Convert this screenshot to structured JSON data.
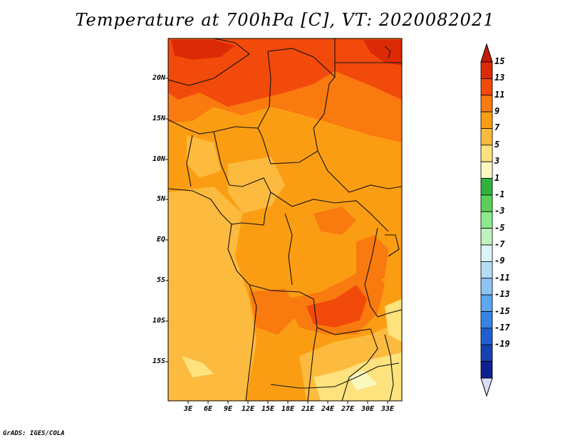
{
  "title": "Temperature at 700hPa [C], VT: 2020082021",
  "latitude_labels": [
    "20N",
    "15N",
    "10N",
    "5N",
    "EQ",
    "5S",
    "10S",
    "15S"
  ],
  "longitude_labels": [
    "3E",
    "6E",
    "9E",
    "12E",
    "15E",
    "18E",
    "21E",
    "24E",
    "27E",
    "30E",
    "33E"
  ],
  "colorbar": {
    "labels": [
      "15",
      "13",
      "11",
      "9",
      "7",
      "5",
      "3",
      "1",
      "-1",
      "-3",
      "-5",
      "-7",
      "-9",
      "-11",
      "-13",
      "-15",
      "-17",
      "-19"
    ],
    "colors": [
      "#dd2a06",
      "#f24a0b",
      "#f97a0f",
      "#fb9d13",
      "#fcba3e",
      "#fde27e",
      "#fbf8c0",
      "#2fb33d",
      "#5ad05a",
      "#8cea8c",
      "#bff2be",
      "#dbf4f6",
      "#b5dcf5",
      "#8dc4f3",
      "#5ea6ee",
      "#3883e4",
      "#1f5fd2",
      "#1542b3",
      "#0e2190"
    ],
    "top_arrow_color": "#c21d04",
    "bottom_arrow_color": "#d9dcf6"
  },
  "credit": "GrADS: IGES/COLA"
}
